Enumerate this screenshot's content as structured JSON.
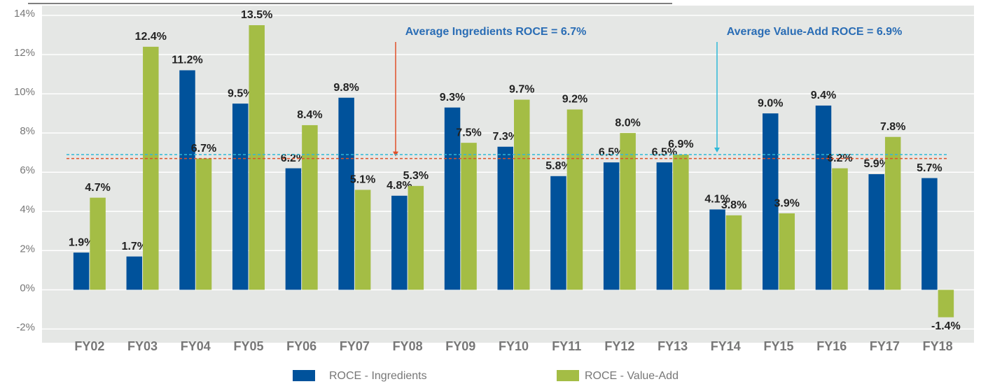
{
  "chart_data": {
    "type": "bar",
    "categories": [
      "FY02",
      "FY03",
      "FY04",
      "FY05",
      "FY06",
      "FY07",
      "FY08",
      "FY09",
      "FY10",
      "FY11",
      "FY12",
      "FY13",
      "FY14",
      "FY15",
      "FY16",
      "FY17",
      "FY18"
    ],
    "series": [
      {
        "name": "ROCE - Ingredients",
        "color": "#00529b",
        "values": [
          1.9,
          1.7,
          11.2,
          9.5,
          6.2,
          9.8,
          4.8,
          9.3,
          7.3,
          5.8,
          6.5,
          6.5,
          4.1,
          9.0,
          9.4,
          5.9,
          5.7
        ],
        "value_labels": [
          "1.9%",
          "1.7%",
          "11.2%",
          "9.5%",
          "6.2%",
          "9.8%",
          "4.8%",
          "9.3%",
          "7.3%",
          "5.8%",
          "6.5%",
          "6.5%",
          "4.1%",
          "9.0%",
          "9.4%",
          "5.9%",
          "5.7%"
        ]
      },
      {
        "name": "ROCE - Value-Add",
        "color": "#a4bd45",
        "values": [
          4.7,
          12.4,
          6.7,
          13.5,
          8.4,
          5.1,
          5.3,
          7.5,
          9.7,
          9.2,
          8.0,
          6.9,
          3.8,
          3.9,
          6.2,
          7.8,
          -1.4
        ],
        "value_labels": [
          "4.7%",
          "12.4%",
          "6.7%",
          "13.5%",
          "8.4%",
          "5.1%",
          "5.3%",
          "7.5%",
          "9.7%",
          "9.2%",
          "8.0%",
          "6.9%",
          "3.8%",
          "3.9%",
          "6.2%",
          "7.8%",
          "-1.4%"
        ]
      }
    ],
    "reference_lines": [
      {
        "label": "Average Ingredients ROCE = 6.7%",
        "value": 6.7,
        "color": "#e0502a"
      },
      {
        "label": "Average Value-Add ROCE = 6.9%",
        "value": 6.9,
        "color": "#2fb8d8"
      }
    ],
    "ylim": [
      -2.7,
      14.5
    ],
    "yticks": [
      {
        "value": -2,
        "label": "-2%"
      },
      {
        "value": 0,
        "label": "0%"
      },
      {
        "value": 2,
        "label": "2%"
      },
      {
        "value": 4,
        "label": "4%"
      },
      {
        "value": 6,
        "label": "6%"
      },
      {
        "value": 8,
        "label": "8%"
      },
      {
        "value": 10,
        "label": "10%"
      },
      {
        "value": 12,
        "label": "12%"
      },
      {
        "value": 14,
        "label": "14%"
      }
    ],
    "grid": true,
    "legend": "bottom"
  }
}
